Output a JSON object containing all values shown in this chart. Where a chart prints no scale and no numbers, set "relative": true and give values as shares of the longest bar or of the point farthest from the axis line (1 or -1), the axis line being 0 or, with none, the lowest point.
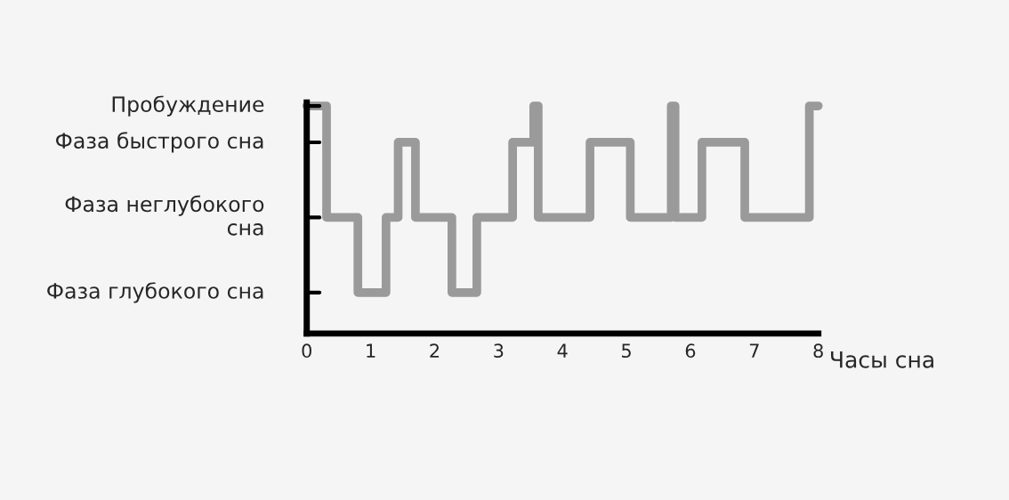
{
  "chart_data": {
    "type": "step",
    "xlabel": "Часы сна",
    "relative": true,
    "x": [
      0,
      0.31,
      0.8,
      1.24,
      1.43,
      1.7,
      2.27,
      2.66,
      3.22,
      3.55,
      3.62,
      4.43,
      5.06,
      5.7,
      5.76,
      6.18,
      6.85,
      7.86,
      8
    ],
    "series": [
      {
        "color": "#9a9a9a",
        "values": [
          1,
          0.51,
          0.18,
          0.51,
          0.84,
          0.51,
          0.18,
          0.51,
          0.84,
          1,
          0.51,
          0.84,
          0.51,
          1,
          0.51,
          0.84,
          0.51,
          1,
          1
        ]
      }
    ],
    "xlim": [
      0,
      8
    ],
    "xticks": [
      0,
      1,
      2,
      3,
      4,
      5,
      6,
      7,
      8
    ],
    "annotations": [
      "Пробуждение",
      "Фаза быстрого сна",
      "Фаза неглубокого\nсна",
      "Фаза глубокого сна"
    ],
    "grid": false,
    "marker": "none",
    "line_style": "solid"
  }
}
